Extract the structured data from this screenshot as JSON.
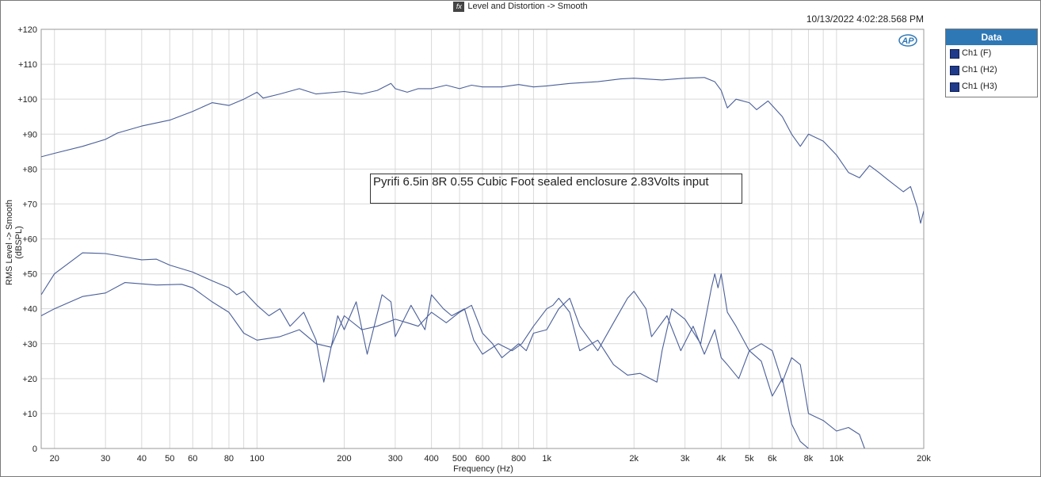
{
  "header": {
    "title": "Level and Distortion -> Smooth",
    "fx_icon": "fx-icon",
    "timestamp": "10/13/2022 4:02:28.568 PM"
  },
  "legend": {
    "title": "Data",
    "items": [
      "Ch1 (F)",
      "Ch1 (H2)",
      "Ch1 (H3)"
    ],
    "swatch_color": "#1f3a8a"
  },
  "annotation": "Pyrifi 6.5in 8R 0.55 Cubic Foot sealed enclosure 2.83Volts input",
  "logo_text": "AP",
  "chart_data": {
    "type": "line",
    "xlabel": "Frequency (Hz)",
    "ylabel": "RMS Level -> Smooth (dBSPL)",
    "xscale": "log",
    "xlim": [
      18,
      20000
    ],
    "ylim": [
      0,
      120
    ],
    "grid": true,
    "legend_position": "right",
    "line_color": "#4a5f9a",
    "x_ticks": [
      {
        "v": 20,
        "l": "20"
      },
      {
        "v": 30,
        "l": "30"
      },
      {
        "v": 40,
        "l": "40"
      },
      {
        "v": 50,
        "l": "50"
      },
      {
        "v": 60,
        "l": "60"
      },
      {
        "v": 80,
        "l": "80"
      },
      {
        "v": 100,
        "l": "100"
      },
      {
        "v": 200,
        "l": "200"
      },
      {
        "v": 300,
        "l": "300"
      },
      {
        "v": 400,
        "l": "400"
      },
      {
        "v": 500,
        "l": "500"
      },
      {
        "v": 600,
        "l": "600"
      },
      {
        "v": 800,
        "l": "800"
      },
      {
        "v": 1000,
        "l": "1k"
      },
      {
        "v": 2000,
        "l": "2k"
      },
      {
        "v": 3000,
        "l": "3k"
      },
      {
        "v": 4000,
        "l": "4k"
      },
      {
        "v": 5000,
        "l": "5k"
      },
      {
        "v": 6000,
        "l": "6k"
      },
      {
        "v": 8000,
        "l": "8k"
      },
      {
        "v": 10000,
        "l": "10k"
      },
      {
        "v": 20000,
        "l": "20k"
      }
    ],
    "y_ticks": [
      {
        "v": 0,
        "l": "0"
      },
      {
        "v": 10,
        "l": "+10"
      },
      {
        "v": 20,
        "l": "+20"
      },
      {
        "v": 30,
        "l": "+30"
      },
      {
        "v": 40,
        "l": "+40"
      },
      {
        "v": 50,
        "l": "+50"
      },
      {
        "v": 60,
        "l": "+60"
      },
      {
        "v": 70,
        "l": "+70"
      },
      {
        "v": 80,
        "l": "+80"
      },
      {
        "v": 90,
        "l": "+90"
      },
      {
        "v": 100,
        "l": "+100"
      },
      {
        "v": 110,
        "l": "+110"
      },
      {
        "v": 120,
        "l": "+120"
      }
    ],
    "series": [
      {
        "name": "Ch1 (F)",
        "points": [
          [
            18,
            83.5
          ],
          [
            20,
            84.5
          ],
          [
            25,
            86.5
          ],
          [
            30,
            88.5
          ],
          [
            33,
            90.3
          ],
          [
            40,
            92.3
          ],
          [
            50,
            94
          ],
          [
            60,
            96.5
          ],
          [
            70,
            99
          ],
          [
            80,
            98.2
          ],
          [
            90,
            100
          ],
          [
            100,
            102
          ],
          [
            105,
            100.3
          ],
          [
            120,
            101.5
          ],
          [
            140,
            103
          ],
          [
            160,
            101.5
          ],
          [
            200,
            102.2
          ],
          [
            230,
            101.5
          ],
          [
            260,
            102.5
          ],
          [
            290,
            104.5
          ],
          [
            300,
            103
          ],
          [
            330,
            102
          ],
          [
            360,
            103
          ],
          [
            400,
            103
          ],
          [
            450,
            104
          ],
          [
            500,
            103
          ],
          [
            550,
            104
          ],
          [
            600,
            103.5
          ],
          [
            700,
            103.5
          ],
          [
            800,
            104.2
          ],
          [
            900,
            103.5
          ],
          [
            1000,
            103.8
          ],
          [
            1200,
            104.5
          ],
          [
            1500,
            105
          ],
          [
            1800,
            105.8
          ],
          [
            2000,
            106
          ],
          [
            2500,
            105.5
          ],
          [
            3000,
            106
          ],
          [
            3500,
            106.2
          ],
          [
            3800,
            105
          ],
          [
            4000,
            102.5
          ],
          [
            4200,
            97.5
          ],
          [
            4500,
            100
          ],
          [
            5000,
            99
          ],
          [
            5300,
            97
          ],
          [
            5800,
            99.5
          ],
          [
            6500,
            95
          ],
          [
            7000,
            90
          ],
          [
            7500,
            86.5
          ],
          [
            8000,
            90
          ],
          [
            9000,
            88
          ],
          [
            10000,
            84
          ],
          [
            11000,
            79
          ],
          [
            12000,
            77.5
          ],
          [
            13000,
            81
          ],
          [
            14000,
            79
          ],
          [
            15000,
            77
          ],
          [
            17000,
            73.5
          ],
          [
            18000,
            75
          ],
          [
            19000,
            69
          ],
          [
            19500,
            64.5
          ],
          [
            20000,
            68
          ]
        ]
      },
      {
        "name": "Ch1 (H2)",
        "points": [
          [
            18,
            44
          ],
          [
            20,
            50
          ],
          [
            25,
            56
          ],
          [
            30,
            55.8
          ],
          [
            40,
            54
          ],
          [
            45,
            54.2
          ],
          [
            50,
            52.5
          ],
          [
            60,
            50.5
          ],
          [
            70,
            48
          ],
          [
            80,
            46
          ],
          [
            85,
            44
          ],
          [
            90,
            45
          ],
          [
            100,
            41
          ],
          [
            110,
            38
          ],
          [
            120,
            40
          ],
          [
            130,
            35
          ],
          [
            145,
            39
          ],
          [
            160,
            31
          ],
          [
            170,
            19
          ],
          [
            190,
            38
          ],
          [
            200,
            34
          ],
          [
            220,
            42
          ],
          [
            240,
            27
          ],
          [
            270,
            44
          ],
          [
            290,
            42
          ],
          [
            300,
            32
          ],
          [
            340,
            41
          ],
          [
            380,
            34
          ],
          [
            400,
            44
          ],
          [
            440,
            40
          ],
          [
            470,
            38
          ],
          [
            520,
            40
          ],
          [
            560,
            31
          ],
          [
            600,
            27
          ],
          [
            680,
            30
          ],
          [
            760,
            28
          ],
          [
            820,
            30
          ],
          [
            900,
            35
          ],
          [
            1000,
            40
          ],
          [
            1050,
            41
          ],
          [
            1100,
            43
          ],
          [
            1200,
            39
          ],
          [
            1300,
            28
          ],
          [
            1500,
            31
          ],
          [
            1700,
            24
          ],
          [
            1900,
            21
          ],
          [
            2100,
            21.5
          ],
          [
            2400,
            19
          ],
          [
            2500,
            28
          ],
          [
            2700,
            40
          ],
          [
            3000,
            37
          ],
          [
            3400,
            30
          ],
          [
            3700,
            46
          ],
          [
            3800,
            50
          ],
          [
            3900,
            46
          ],
          [
            4000,
            50
          ],
          [
            4200,
            39
          ],
          [
            4500,
            35
          ],
          [
            5000,
            28
          ],
          [
            5500,
            25
          ],
          [
            6000,
            15
          ],
          [
            6500,
            20
          ],
          [
            7000,
            7
          ],
          [
            7500,
            2
          ],
          [
            8000,
            0
          ]
        ]
      },
      {
        "name": "Ch1 (H3)",
        "points": [
          [
            18,
            38
          ],
          [
            20,
            40
          ],
          [
            25,
            43.5
          ],
          [
            30,
            44.5
          ],
          [
            35,
            47.5
          ],
          [
            45,
            46.8
          ],
          [
            55,
            47
          ],
          [
            60,
            46
          ],
          [
            70,
            42
          ],
          [
            80,
            39
          ],
          [
            90,
            33
          ],
          [
            100,
            31
          ],
          [
            120,
            32
          ],
          [
            140,
            34
          ],
          [
            160,
            30
          ],
          [
            180,
            29
          ],
          [
            200,
            38
          ],
          [
            230,
            34
          ],
          [
            260,
            35
          ],
          [
            300,
            37
          ],
          [
            330,
            36
          ],
          [
            360,
            35
          ],
          [
            400,
            39
          ],
          [
            450,
            36
          ],
          [
            500,
            39
          ],
          [
            550,
            41
          ],
          [
            600,
            33
          ],
          [
            650,
            30
          ],
          [
            700,
            26
          ],
          [
            800,
            30
          ],
          [
            850,
            28
          ],
          [
            900,
            33
          ],
          [
            1000,
            34
          ],
          [
            1100,
            40
          ],
          [
            1200,
            43
          ],
          [
            1300,
            35
          ],
          [
            1500,
            28
          ],
          [
            1700,
            36
          ],
          [
            1900,
            43
          ],
          [
            2000,
            45
          ],
          [
            2200,
            40
          ],
          [
            2300,
            32
          ],
          [
            2600,
            38
          ],
          [
            2900,
            28
          ],
          [
            3200,
            35
          ],
          [
            3500,
            27
          ],
          [
            3800,
            34
          ],
          [
            4000,
            26
          ],
          [
            4200,
            24
          ],
          [
            4600,
            20
          ],
          [
            5000,
            28
          ],
          [
            5500,
            30
          ],
          [
            6000,
            28
          ],
          [
            6500,
            19
          ],
          [
            7000,
            26
          ],
          [
            7500,
            24
          ],
          [
            8000,
            10
          ],
          [
            9000,
            8
          ],
          [
            10000,
            5
          ],
          [
            11000,
            6
          ],
          [
            12000,
            4
          ],
          [
            12500,
            0
          ]
        ]
      }
    ]
  }
}
